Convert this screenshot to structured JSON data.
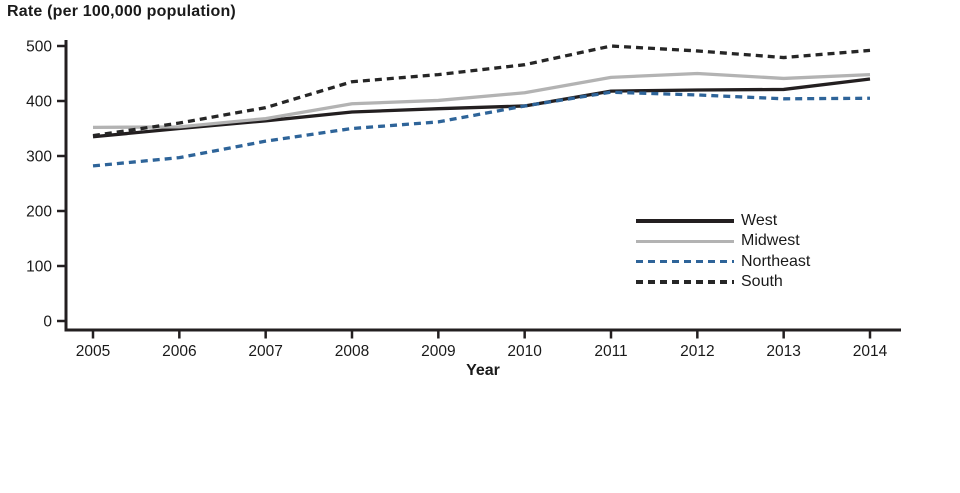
{
  "title": "Rate (per 100,000 population)",
  "xlabel": "Year",
  "legend": {
    "labels": [
      "West",
      "Midwest",
      "Northeast",
      "South"
    ]
  },
  "axes": {
    "y_tick_labels": [
      "0",
      "100",
      "200",
      "300",
      "400",
      "500"
    ],
    "x_tick_labels": [
      "2005",
      "2006",
      "2007",
      "2008",
      "2009",
      "2010",
      "2011",
      "2012",
      "2013",
      "2014"
    ]
  },
  "chart_data": {
    "type": "line",
    "title": "Rate (per 100,000 population)",
    "xlabel": "Year",
    "ylabel": "Rate (per 100,000 population)",
    "x": [
      2005,
      2006,
      2007,
      2008,
      2009,
      2010,
      2011,
      2012,
      2013,
      2014
    ],
    "ylim": [
      0,
      500
    ],
    "yticks": [
      0,
      100,
      200,
      300,
      400,
      500
    ],
    "grid": false,
    "legend_position": "inside-right",
    "series": [
      {
        "name": "West",
        "color": "#231f20",
        "style": "solid",
        "values": [
          335,
          350,
          364,
          380,
          386,
          391,
          418,
          420,
          421,
          440
        ]
      },
      {
        "name": "Midwest",
        "color": "#b3b3b3",
        "style": "solid",
        "values": [
          352,
          353,
          368,
          395,
          401,
          415,
          443,
          450,
          441,
          448
        ]
      },
      {
        "name": "Northeast",
        "color": "#2e6499",
        "style": "dashed",
        "values": [
          282,
          297,
          327,
          350,
          362,
          391,
          416,
          411,
          404,
          405
        ]
      },
      {
        "name": "South",
        "color": "#262626",
        "style": "dashed",
        "values": [
          337,
          360,
          388,
          435,
          448,
          466,
          500,
          491,
          479,
          492
        ]
      }
    ]
  }
}
